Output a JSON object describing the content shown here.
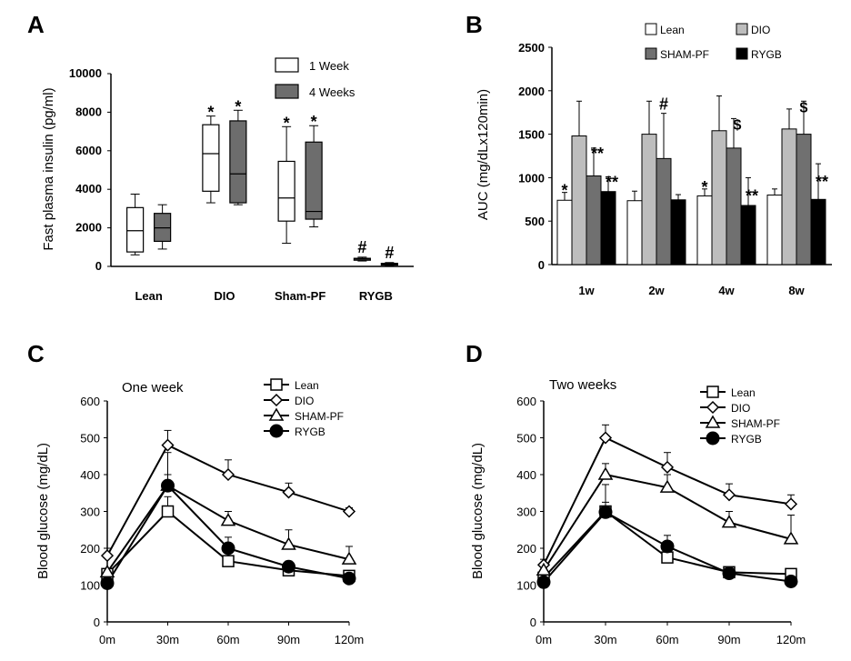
{
  "panels": {
    "A": {
      "letter": "A",
      "chart_data": {
        "type": "box",
        "categories": [
          "Lean",
          "DIO",
          "Sham-PF",
          "RYGB"
        ],
        "series": [
          {
            "name": "1 Week",
            "color": "#ffffff",
            "boxes": [
              {
                "min": 600,
                "q1": 750,
                "median": 1850,
                "q3": 3050,
                "max": 3750
              },
              {
                "min": 3300,
                "q1": 3900,
                "median": 5850,
                "q3": 7350,
                "max": 7800
              },
              {
                "min": 1200,
                "q1": 2350,
                "median": 3550,
                "q3": 5450,
                "max": 7250
              },
              {
                "min": 280,
                "q1": 320,
                "median": 380,
                "q3": 420,
                "max": 480
              }
            ],
            "annotations": [
              "",
              "*",
              "*",
              "#"
            ]
          },
          {
            "name": "4 Weeks",
            "color": "#6d6d6d",
            "boxes": [
              {
                "min": 900,
                "q1": 1300,
                "median": 2000,
                "q3": 2750,
                "max": 3200
              },
              {
                "min": 3200,
                "q1": 3300,
                "median": 4800,
                "q3": 7550,
                "max": 8100
              },
              {
                "min": 2050,
                "q1": 2450,
                "median": 2850,
                "q3": 6450,
                "max": 7300
              },
              {
                "min": 50,
                "q1": 80,
                "median": 120,
                "q3": 160,
                "max": 200
              }
            ],
            "annotations": [
              "",
              "*",
              "*",
              "#"
            ]
          }
        ],
        "ylabel": "Fast plasma insulin (pg/ml)",
        "ylim": [
          0,
          10000
        ],
        "yticks": [
          "0",
          "2000",
          "4000",
          "6000",
          "8000",
          "10000"
        ],
        "legend": "top-right",
        "grid": false
      }
    },
    "B": {
      "letter": "B",
      "chart_data": {
        "type": "bar",
        "categories": [
          "1w",
          "2w",
          "4w",
          "8w"
        ],
        "series": [
          {
            "name": "Lean",
            "color": "#ffffff",
            "values": [
              740,
              735,
              790,
              800
            ],
            "errors": [
              90,
              110,
              80,
              70
            ],
            "annotations": [
              "*",
              "",
              "*",
              ""
            ]
          },
          {
            "name": "DIO",
            "color": "#bdbdbd",
            "values": [
              1480,
              1500,
              1540,
              1560
            ],
            "errors": [
              400,
              380,
              400,
              230
            ],
            "annotations": [
              "",
              "",
              "",
              ""
            ]
          },
          {
            "name": "SHAM-PF",
            "color": "#707070",
            "values": [
              1020,
              1220,
              1340,
              1500
            ],
            "errors": [
              320,
              520,
              340,
              380
            ],
            "annotations": [
              "**",
              "#",
              "$",
              "$"
            ]
          },
          {
            "name": "RYGB",
            "color": "#000000",
            "values": [
              840,
              745,
              680,
              750
            ],
            "errors": [
              170,
              60,
              320,
              410
            ],
            "annotations": [
              "**",
              "",
              "**",
              "**"
            ]
          }
        ],
        "ylabel": "AUC (mg/dLx120min)",
        "ylim": [
          0,
          2500
        ],
        "yticks": [
          "0",
          "500",
          "1000",
          "1500",
          "2000",
          "2500"
        ],
        "legend": "top",
        "grid": false
      }
    },
    "C": {
      "letter": "C",
      "chart_data": {
        "type": "line",
        "title": "One week",
        "x": [
          "0m",
          "30m",
          "60m",
          "90m",
          "120m"
        ],
        "series": [
          {
            "name": "Lean",
            "marker": "square-open",
            "values": [
              130,
              300,
              165,
              140,
              125
            ],
            "errors": [
              10,
              40,
              10,
              10,
              10
            ]
          },
          {
            "name": "DIO",
            "marker": "diamond-open",
            "values": [
              180,
              480,
              400,
              352,
              300
            ],
            "errors": [
              20,
              40,
              40,
              25,
              10
            ]
          },
          {
            "name": "SHAM-PF",
            "marker": "triangle-open",
            "values": [
              135,
              370,
              275,
              210,
              170
            ],
            "errors": [
              10,
              30,
              25,
              40,
              35
            ]
          },
          {
            "name": "RYGB",
            "marker": "circle-filled",
            "values": [
              105,
              370,
              200,
              150,
              118
            ],
            "errors": [
              10,
              90,
              30,
              15,
              10
            ]
          }
        ],
        "ylabel": "Blood glucose (mg/dL)",
        "ylim": [
          0,
          600
        ],
        "yticks": [
          "0",
          "100",
          "200",
          "300",
          "400",
          "500",
          "600"
        ],
        "legend": "top-right",
        "grid": false
      }
    },
    "D": {
      "letter": "D",
      "chart_data": {
        "type": "line",
        "title": "Two weeks",
        "x": [
          "0m",
          "30m",
          "60m",
          "90m",
          "120m"
        ],
        "series": [
          {
            "name": "Lean",
            "marker": "square-open",
            "values": [
              120,
              300,
              175,
              135,
              130
            ],
            "errors": [
              10,
              25,
              15,
              10,
              10
            ]
          },
          {
            "name": "DIO",
            "marker": "diamond-open",
            "values": [
              155,
              500,
              420,
              345,
              320
            ],
            "errors": [
              15,
              35,
              40,
              30,
              25
            ]
          },
          {
            "name": "SHAM-PF",
            "marker": "triangle-open",
            "values": [
              140,
              400,
              365,
              270,
              225
            ],
            "errors": [
              15,
              30,
              35,
              30,
              65
            ]
          },
          {
            "name": "RYGB",
            "marker": "circle-filled",
            "values": [
              108,
              298,
              205,
              132,
              110
            ],
            "errors": [
              10,
              75,
              30,
              10,
              10
            ]
          }
        ],
        "ylabel": "Blood glucose (mg/dL)",
        "ylim": [
          0,
          600
        ],
        "yticks": [
          "0",
          "100",
          "200",
          "300",
          "400",
          "500",
          "600"
        ],
        "legend": "top-right",
        "grid": false
      }
    }
  }
}
